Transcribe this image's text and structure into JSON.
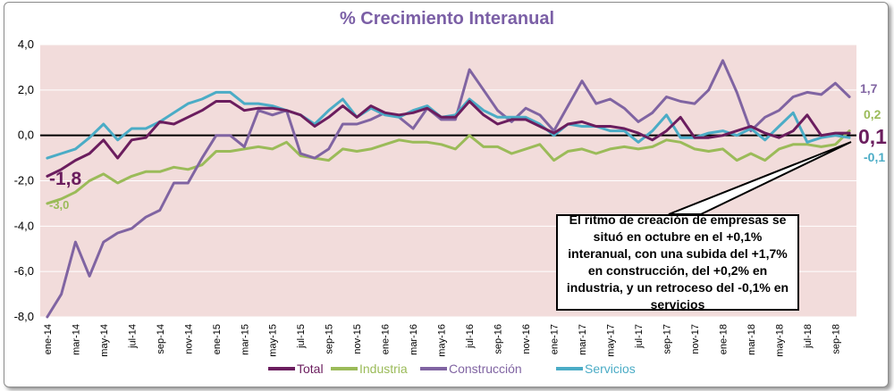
{
  "colors": {
    "total": "#6b1d5e",
    "industria": "#9bbb59",
    "construccion": "#8064a2",
    "servicios": "#4bacc6",
    "plot_bg": "#f2dcdb",
    "grid": "#ffffff"
  },
  "chart_data": {
    "type": "line",
    "title": "% Crecimiento Interanual",
    "xlabel": "",
    "ylabel": "",
    "ylim": [
      -8,
      4
    ],
    "yticks": [
      "4,0",
      "2,0",
      "0,0",
      "-2,0",
      "-4,0",
      "-6,0",
      "-8,0"
    ],
    "x": [
      "ene-14",
      "feb-14",
      "mar-14",
      "abr-14",
      "may-14",
      "jun-14",
      "jul-14",
      "ago-14",
      "sep-14",
      "oct-14",
      "nov-14",
      "dic-14",
      "ene-15",
      "feb-15",
      "mar-15",
      "abr-15",
      "may-15",
      "jun-15",
      "jul-15",
      "ago-15",
      "sep-15",
      "oct-15",
      "nov-15",
      "dic-15",
      "ene-16",
      "feb-16",
      "mar-16",
      "abr-16",
      "may-16",
      "jun-16",
      "jul-16",
      "ago-16",
      "sep-16",
      "oct-16",
      "nov-16",
      "dic-16",
      "ene-17",
      "feb-17",
      "mar-17",
      "abr-17",
      "may-17",
      "jun-17",
      "jul-17",
      "ago-17",
      "sep-17",
      "oct-17",
      "nov-17",
      "dic-17",
      "ene-18",
      "feb-18",
      "mar-18",
      "abr-18",
      "may-18",
      "jun-18",
      "jul-18",
      "ago-18",
      "sep-18",
      "oct-18"
    ],
    "xtick_labels": [
      "ene-14",
      "mar-14",
      "may-14",
      "jul-14",
      "sep-14",
      "nov-14",
      "ene-15",
      "mar-15",
      "may-15",
      "jul-15",
      "sep-15",
      "nov-15",
      "ene-16",
      "mar-16",
      "may-16",
      "jul-16",
      "sep-16",
      "nov-16",
      "ene-17",
      "mar-17",
      "may-17",
      "jul-17",
      "sep-17",
      "nov-17",
      "ene-18",
      "mar-18",
      "may-18",
      "jul-18",
      "sep-18"
    ],
    "series": [
      {
        "name": "Total",
        "key": "total",
        "values": [
          -1.8,
          -1.5,
          -1.1,
          -0.8,
          -0.2,
          -1.0,
          -0.2,
          -0.1,
          0.6,
          0.5,
          0.8,
          1.1,
          1.5,
          1.5,
          1.1,
          1.2,
          1.2,
          1.1,
          0.9,
          0.4,
          0.8,
          1.3,
          0.8,
          1.3,
          1.0,
          0.9,
          1.0,
          1.2,
          0.8,
          0.8,
          1.5,
          0.9,
          0.5,
          0.7,
          0.7,
          0.4,
          0.1,
          0.5,
          0.6,
          0.4,
          0.4,
          0.3,
          0.1,
          -0.2,
          0.2,
          0.8,
          -0.1,
          -0.1,
          0.0,
          0.2,
          0.4,
          0.1,
          -0.1,
          0.2,
          0.9,
          0.0,
          0.1,
          0.1
        ]
      },
      {
        "name": "Industria",
        "key": "industria",
        "values": [
          -3.0,
          -2.8,
          -2.5,
          -2.0,
          -1.7,
          -2.1,
          -1.8,
          -1.6,
          -1.6,
          -1.4,
          -1.5,
          -1.3,
          -0.7,
          -0.7,
          -0.6,
          -0.5,
          -0.6,
          -0.3,
          -0.9,
          -1.0,
          -1.1,
          -0.6,
          -0.7,
          -0.6,
          -0.4,
          -0.2,
          -0.3,
          -0.3,
          -0.4,
          -0.6,
          0.0,
          -0.5,
          -0.5,
          -0.8,
          -0.6,
          -0.4,
          -1.1,
          -0.7,
          -0.6,
          -0.8,
          -0.6,
          -0.5,
          -0.6,
          -0.5,
          -0.2,
          -0.3,
          -0.6,
          -0.7,
          -0.6,
          -1.1,
          -0.8,
          -1.1,
          -0.6,
          -0.4,
          -0.4,
          -0.5,
          -0.4,
          0.2
        ]
      },
      {
        "name": "Construcción",
        "key": "construccion",
        "values": [
          -8.0,
          -7.0,
          -4.7,
          -6.2,
          -4.7,
          -4.3,
          -4.1,
          -3.6,
          -3.3,
          -2.1,
          -2.1,
          -1.0,
          0.0,
          0.0,
          -0.5,
          1.1,
          0.9,
          1.1,
          -0.8,
          -1.0,
          -0.6,
          0.5,
          0.5,
          0.7,
          1.0,
          0.8,
          0.3,
          1.2,
          0.7,
          0.7,
          2.9,
          2.0,
          1.1,
          0.6,
          1.2,
          0.9,
          0.2,
          1.3,
          2.4,
          1.4,
          1.6,
          1.2,
          0.6,
          1.0,
          1.7,
          1.5,
          1.4,
          2.0,
          3.3,
          1.9,
          0.2,
          0.8,
          1.1,
          1.7,
          1.9,
          1.8,
          2.3,
          1.7
        ]
      },
      {
        "name": "Servicios",
        "key": "servicios",
        "values": [
          -1.0,
          -0.8,
          -0.6,
          -0.1,
          0.5,
          -0.2,
          0.3,
          0.3,
          0.6,
          1.0,
          1.4,
          1.6,
          1.9,
          1.9,
          1.4,
          1.4,
          1.3,
          1.1,
          0.9,
          0.5,
          1.1,
          1.6,
          0.8,
          1.2,
          0.9,
          0.8,
          1.1,
          1.3,
          0.8,
          0.9,
          1.6,
          1.1,
          0.8,
          0.8,
          0.8,
          0.5,
          0.0,
          0.5,
          0.4,
          0.4,
          0.2,
          0.2,
          -0.3,
          0.2,
          0.9,
          -0.1,
          -0.1,
          0.1,
          0.2,
          0.0,
          0.3,
          -0.2,
          0.4,
          1.0,
          -0.3,
          -0.1,
          0.0,
          -0.1
        ]
      }
    ],
    "legend": [
      "Total",
      "Industria",
      "Construcción",
      "Servicios"
    ],
    "legend_position": "bottom",
    "annotations": {
      "start_total": "-1,8",
      "start_industria": "-3,0",
      "end_total": "0,1",
      "end_industria": "0,2",
      "end_construccion": "1,7",
      "end_servicios": "-0,1",
      "callout": "El ritmo de creación de empresas se situó en octubre en el +0,1% interanual, con una subida del +1,7% en construcción, del +0,2% en industria, y un retroceso del -0,1% en servicios"
    }
  }
}
